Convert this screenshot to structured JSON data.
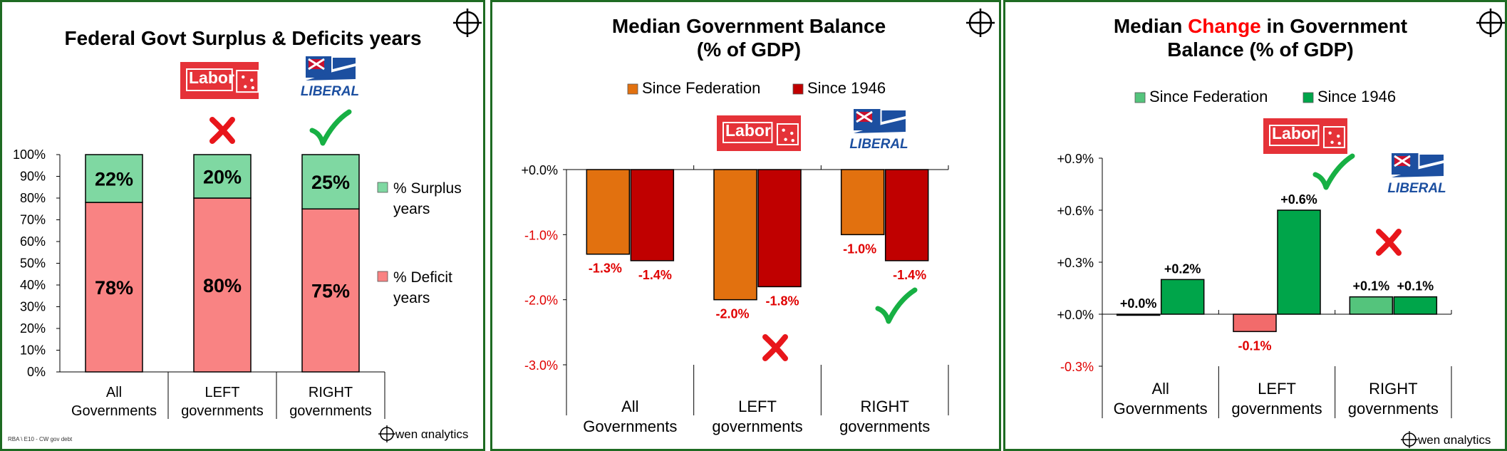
{
  "charts": [
    {
      "id": "p1",
      "type": "stacked-bar",
      "title_lines": [
        "Federal Govt Surplus & Deficits years"
      ],
      "categories": [
        [
          "All",
          "Governments"
        ],
        [
          "LEFT",
          "governments"
        ],
        [
          "RIGHT",
          "governments"
        ]
      ],
      "series": [
        {
          "name_lines": [
            "% Deficit",
            "years"
          ],
          "color": "#f98383",
          "values": [
            78,
            80,
            75
          ],
          "labels": [
            "78%",
            "80%",
            "75%"
          ]
        },
        {
          "name_lines": [
            "% Surplus",
            "years"
          ],
          "color": "#7fd8a2",
          "values": [
            22,
            20,
            25
          ],
          "labels": [
            "22%",
            "20%",
            "25%"
          ]
        }
      ],
      "y_ticks": [
        "0%",
        "10%",
        "20%",
        "30%",
        "40%",
        "50%",
        "60%",
        "70%",
        "80%",
        "90%",
        "100%"
      ],
      "ylim": [
        0,
        100
      ],
      "legend_position": "right",
      "logos": {
        "labor": "Labor",
        "liberal": "LIBERAL"
      },
      "marks": [
        "cross",
        "check"
      ],
      "footnote": "RBA \\ E10 - CW gov debt",
      "brand": "wen αnalytics"
    },
    {
      "id": "p2",
      "type": "bar",
      "title_lines": [
        "Median Government Balance",
        "(% of GDP)"
      ],
      "categories": [
        [
          "All",
          "Governments"
        ],
        [
          "LEFT",
          "governments"
        ],
        [
          "RIGHT",
          "governments"
        ]
      ],
      "series": [
        {
          "name": "Since Federation",
          "color": "#e2710f",
          "values": [
            -1.3,
            -2.0,
            -1.0
          ],
          "labels": [
            "-1.3%",
            "-2.0%",
            "-1.0%"
          ]
        },
        {
          "name": "Since 1946",
          "color": "#c00000",
          "values": [
            -1.4,
            -1.8,
            -1.4
          ],
          "labels": [
            "-1.4%",
            "-1.8%",
            "-1.4%"
          ]
        }
      ],
      "y_ticks": [
        "+0.0%",
        "-1.0%",
        "-2.0%",
        "-3.0%"
      ],
      "ylim": [
        -3.0,
        0.0
      ],
      "legend_position": "top",
      "logos": {
        "labor": "Labor",
        "liberal": "LIBERAL"
      },
      "marks": [
        "cross",
        "check"
      ]
    },
    {
      "id": "p3",
      "type": "bar",
      "title_lines": [
        "Median Change in Government",
        "Balance (% of GDP)"
      ],
      "title_highlight": "Change",
      "categories": [
        [
          "All",
          "Governments"
        ],
        [
          "LEFT",
          "governments"
        ],
        [
          "RIGHT",
          "governments"
        ]
      ],
      "series": [
        {
          "name": "Since Federation",
          "color": "#54c47c",
          "values": [
            0.0,
            -0.1,
            0.1
          ],
          "labels": [
            "+0.0%",
            "-0.1%",
            "+0.1%"
          ]
        },
        {
          "name": "Since 1946",
          "color": "#00a54a",
          "values": [
            0.2,
            0.6,
            0.1
          ],
          "labels": [
            "+0.2%",
            "+0.6%",
            "+0.1%"
          ]
        }
      ],
      "y_ticks": [
        "-0.3%",
        "+0.0%",
        "+0.3%",
        "+0.6%",
        "+0.9%"
      ],
      "ylim": [
        -0.3,
        0.9
      ],
      "legend_position": "top",
      "logos": {
        "labor": "Labor",
        "liberal": "LIBERAL"
      },
      "marks": [
        "check",
        "cross"
      ],
      "brand": "wen αnalytics"
    }
  ],
  "chart_data": [
    {
      "type": "bar",
      "stacked": true,
      "title": "Federal Govt Surplus & Deficits years",
      "categories": [
        "All Governments",
        "LEFT governments",
        "RIGHT governments"
      ],
      "series": [
        {
          "name": "% Deficit years",
          "values": [
            78,
            80,
            75
          ]
        },
        {
          "name": "% Surplus years",
          "values": [
            22,
            20,
            25
          ]
        }
      ],
      "ylim": [
        0,
        100
      ],
      "grid": false,
      "legend": "right"
    },
    {
      "type": "bar",
      "title": "Median Government Balance (% of GDP)",
      "categories": [
        "All Governments",
        "LEFT governments",
        "RIGHT governments"
      ],
      "series": [
        {
          "name": "Since Federation",
          "values": [
            -1.3,
            -2.0,
            -1.0
          ]
        },
        {
          "name": "Since 1946",
          "values": [
            -1.4,
            -1.8,
            -1.4
          ]
        }
      ],
      "ylim": [
        -3.0,
        0.0
      ],
      "grid": false,
      "legend": "top"
    },
    {
      "type": "bar",
      "title": "Median Change in Government Balance (% of GDP)",
      "categories": [
        "All Governments",
        "LEFT governments",
        "RIGHT governments"
      ],
      "series": [
        {
          "name": "Since Federation",
          "values": [
            0.0,
            -0.1,
            0.1
          ]
        },
        {
          "name": "Since 1946",
          "values": [
            0.2,
            0.6,
            0.1
          ]
        }
      ],
      "ylim": [
        -0.3,
        0.9
      ],
      "grid": false,
      "legend": "top"
    }
  ]
}
